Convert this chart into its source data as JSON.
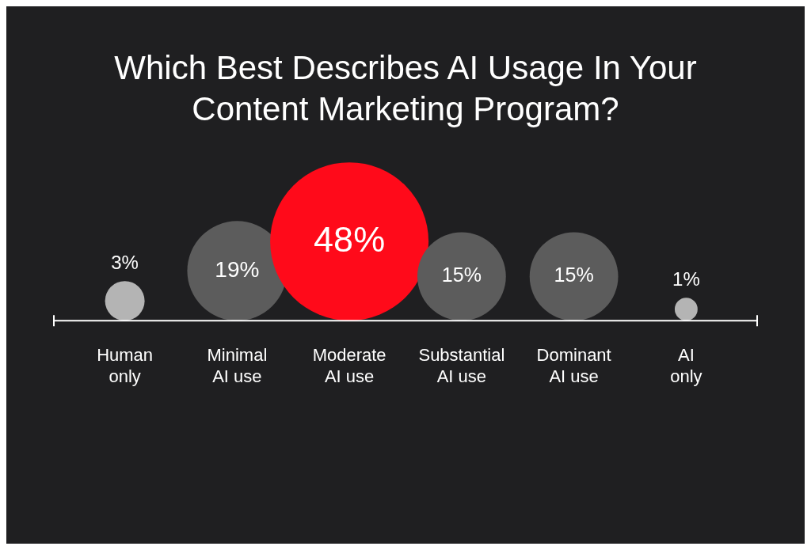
{
  "chart_data": {
    "type": "other",
    "title": "Which Best Describes AI Usage In Your Content Marketing Program?",
    "categories": [
      "Human only",
      "Minimal AI use",
      "Moderate AI use",
      "Substantial AI use",
      "Dominant AI use",
      "AI only"
    ],
    "values": [
      3,
      19,
      48,
      15,
      15,
      1
    ],
    "value_labels": [
      "3%",
      "19%",
      "48%",
      "15%",
      "15%",
      "1%"
    ],
    "colors": [
      "#b4b4b4",
      "#5c5c5c",
      "#ff0a1a",
      "#5c5c5c",
      "#5c5c5c",
      "#b4b4b4"
    ]
  }
}
